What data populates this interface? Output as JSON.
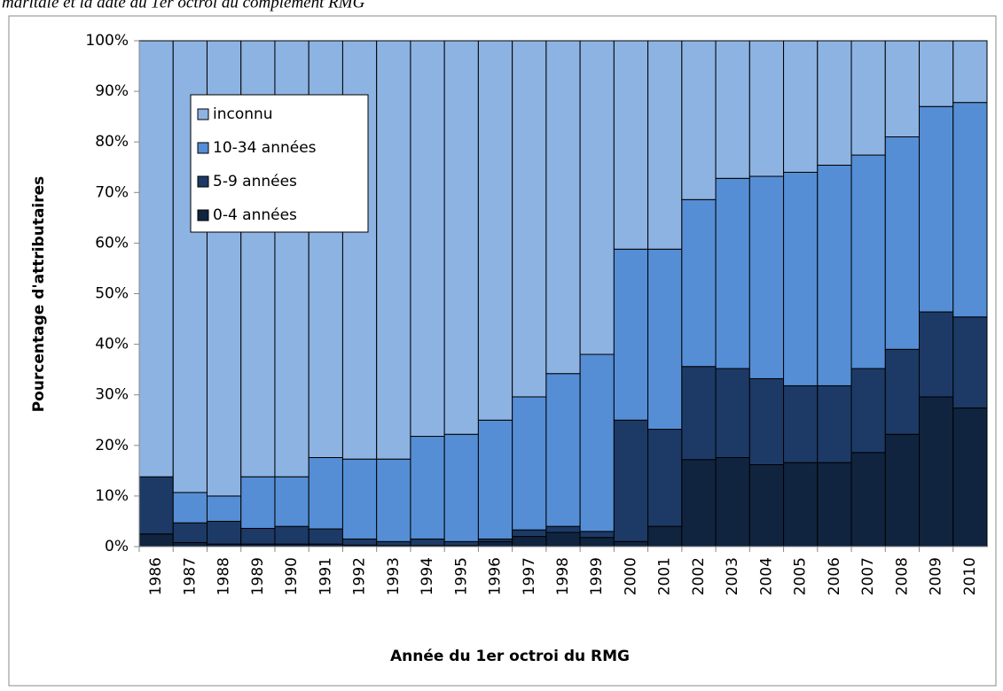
{
  "chart_data": {
    "type": "stacked_bar_100",
    "caption": "maritale et la date du 1er octroi du complément RMG",
    "x_label": "Année du 1er octroi du RMG",
    "y_label": "Pourcentage d'attributaires",
    "categories": [
      "1986",
      "1987",
      "1988",
      "1989",
      "1990",
      "1991",
      "1992",
      "1993",
      "1994",
      "1995",
      "1996",
      "1997",
      "1998",
      "1999",
      "2000",
      "2001",
      "2002",
      "2003",
      "2004",
      "2005",
      "2006",
      "2007",
      "2008",
      "2009",
      "2010"
    ],
    "series": [
      {
        "name": "inconnu",
        "color": "#8db3e2",
        "values": [
          86.2,
          89.3,
          90,
          86.2,
          86.2,
          82.4,
          82.7,
          82.7,
          78.2,
          77.8,
          75,
          70.4,
          65.8,
          62,
          41.2,
          41.2,
          31.4,
          27.2,
          26.8,
          26,
          24.6,
          22.6,
          19,
          13,
          12.2
        ]
      },
      {
        "name": "10-34 années",
        "color": "#558ed5",
        "values": [
          0,
          6,
          5,
          10.2,
          9.8,
          14.1,
          15.8,
          16.3,
          20.3,
          21.2,
          23.5,
          26.3,
          30.2,
          35,
          33.8,
          35.6,
          33,
          37.6,
          40,
          42.2,
          43.6,
          42.2,
          42,
          40.6,
          42.4
        ]
      },
      {
        "name": "5-9 années",
        "color": "#1d3a66",
        "values": [
          11.3,
          3.9,
          4.5,
          3.1,
          3.5,
          3,
          1.2,
          0.8,
          1.3,
          0.8,
          0.5,
          1.3,
          1.2,
          1.2,
          24,
          19.2,
          18.4,
          17.6,
          17,
          15.2,
          15.2,
          16.6,
          16.8,
          16.8,
          18
        ]
      },
      {
        "name": "0-4 années",
        "color": "#10243f",
        "values": [
          2.5,
          0.8,
          0.5,
          0.5,
          0.5,
          0.5,
          0.3,
          0.2,
          0.2,
          0.2,
          1,
          2,
          2.8,
          1.8,
          1,
          4,
          17.2,
          17.6,
          16.2,
          16.6,
          16.6,
          18.6,
          22.2,
          29.6,
          27.4
        ]
      }
    ],
    "ylim": [
      0,
      100
    ],
    "yticks": [
      {
        "value": 0,
        "label": "0%"
      },
      {
        "value": 10,
        "label": "10%"
      },
      {
        "value": 20,
        "label": "20%"
      },
      {
        "value": 30,
        "label": "30%"
      },
      {
        "value": 40,
        "label": "40%"
      },
      {
        "value": 50,
        "label": "50%"
      },
      {
        "value": 60,
        "label": "60%"
      },
      {
        "value": 70,
        "label": "70%"
      },
      {
        "value": 80,
        "label": "80%"
      },
      {
        "value": 90,
        "label": "90%"
      },
      {
        "value": 100,
        "label": "100%"
      }
    ],
    "legend": "upper-left"
  }
}
